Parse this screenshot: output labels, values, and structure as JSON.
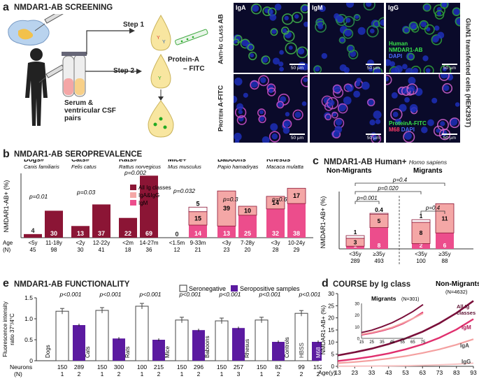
{
  "panel_a": {
    "letter": "a",
    "title": "NMDAR1-AB SCREENING",
    "step1": "Step 1",
    "step2": "Step 2",
    "protein_a": "Protein-A",
    "fitc": "– FITC",
    "sample": "Serum & ventricular CSF pairs",
    "row1": "Anti-Ig class AB",
    "row2": "Protein A-FITC",
    "side": "GluN1 transfected cells (HEK293T)",
    "cols": [
      "IgA",
      "IgM",
      "IgG"
    ],
    "legend_top": [
      "Human",
      "NMDAR1-AB",
      "DAPI"
    ],
    "legend_bottom": [
      "ProteinA-FITC",
      "M68",
      "DAPI"
    ],
    "scale": "50 µm"
  },
  "panel_b": {
    "letter": "b",
    "title": "NMDAR1-AB SEROPREVALENCE",
    "ylabel": "NMDAR1-AB+ (%)",
    "age_label": "Age",
    "n_label": "(N)",
    "legend": [
      "All Ig classes",
      "IgA&IgG",
      "IgM"
    ],
    "species": [
      {
        "name": "Dogs#",
        "latin": "Canis familiaris",
        "p": "p=0.01"
      },
      {
        "name": "Cats#",
        "latin": "Felis catus",
        "p": "p=0.03"
      },
      {
        "name": "Rats#",
        "latin": "Rattus norvegicus",
        "p": "p=0.002"
      },
      {
        "name": "Mice+",
        "latin": "Mus musculus",
        "p": "p=0.032"
      },
      {
        "name": "Baboons*",
        "latin": "Papio hamadryas",
        "p": "p=0.3"
      },
      {
        "name": "Rhesus*",
        "latin": "Macaca mulatta",
        "p": "p=0.6"
      }
    ]
  },
  "panel_c": {
    "letter": "c",
    "title": "NMDAR1-AB Human+",
    "latin": "Homo sapiens",
    "group1": "Non-Migrants",
    "group2": "Migrants",
    "ylabel": "NMDAR1-AB+ (%)",
    "pvals": [
      "p=0.4",
      "p=0.020",
      "p=0.001",
      "0.4",
      "p=0.4"
    ]
  },
  "panel_d": {
    "letter": "d",
    "title": "COURSE by Ig class",
    "group": "Non-Migrants",
    "n": "(N=4632)",
    "inset_title": "Migrants",
    "inset_n": "(N=301)",
    "ylabel": "NMDAR1-AB+ (%)",
    "xlabel": "Age(y)",
    "series_labels": [
      "All Ig classes",
      "IgM",
      "IgA",
      "IgG"
    ]
  },
  "panel_e": {
    "letter": "e",
    "title": "NMDAR1-AB FUNCTIONALITY",
    "legend": [
      "Seronegative",
      "Seropositive samples"
    ],
    "ylabel": "Fluorescence intensity ratio 37°/4°C",
    "row_neurons": "Neurons",
    "row_n": "(N)"
  },
  "chart_data": [
    {
      "type": "bar",
      "title": "NMDAR1-AB SEROPREVALENCE",
      "ylabel": "NMDAR1-AB+ (%)",
      "ylim": [
        0,
        70
      ],
      "categories": [
        "<5y",
        "11-18y",
        "<2y",
        "12-22y",
        "<2m",
        "14-27m",
        "<1.5m",
        "9-33m",
        "<3y",
        "7-28y",
        "<3y",
        "10-24y"
      ],
      "n": [
        "45",
        "98",
        "30",
        "41",
        "18",
        "36",
        "12",
        "21",
        "23",
        "20",
        "28",
        "29"
      ],
      "series": [
        {
          "name": "All Ig classes",
          "values": [
            4,
            30,
            13,
            37,
            22,
            69,
            0,
            null,
            null,
            null,
            null,
            null
          ],
          "labels": [
            "4",
            "30",
            "13",
            "37",
            "22",
            "69",
            "0",
            "",
            "",
            "",
            "",
            ""
          ]
        },
        {
          "name": "IgM",
          "values": [
            null,
            null,
            null,
            null,
            null,
            null,
            null,
            14,
            13,
            25,
            32,
            38
          ],
          "labels": [
            "",
            "",
            "",
            "",
            "",
            "",
            "",
            "14",
            "13",
            "25",
            "32",
            "38"
          ]
        },
        {
          "name": "IgA&IgG",
          "values": [
            null,
            null,
            null,
            null,
            null,
            null,
            null,
            15,
            39,
            10,
            14,
            17
          ],
          "labels": [
            "",
            "",
            "",
            "",
            "",
            "",
            "",
            "15",
            "39",
            "10",
            "14",
            "17"
          ]
        },
        {
          "name": "top",
          "values": [
            null,
            null,
            null,
            null,
            null,
            null,
            null,
            5,
            null,
            null,
            null,
            null
          ],
          "labels": [
            "",
            "",
            "",
            "",
            "",
            "",
            "",
            "5",
            "",
            "",
            "",
            ""
          ]
        }
      ]
    },
    {
      "type": "bar",
      "title": "NMDAR1-AB Human+",
      "ylabel": "NMDAR1-AB+ (%)",
      "ylim": [
        0,
        20
      ],
      "categories": [
        "<35y",
        "≥35y",
        "<35y",
        "≥35y"
      ],
      "n": [
        "289",
        "493",
        "100",
        "88"
      ],
      "series": [
        {
          "name": "IgM",
          "values": [
            1,
            8,
            2,
            6
          ],
          "labels": [
            "1",
            "8",
            "2",
            "6"
          ]
        },
        {
          "name": "IgA&IgG",
          "values": [
            3,
            5,
            8,
            11
          ],
          "labels": [
            "3",
            "5",
            "8",
            "11"
          ]
        },
        {
          "name": "top",
          "values": [
            1,
            0.4,
            1,
            0
          ],
          "labels": [
            "1",
            "0.4",
            "1",
            ""
          ]
        }
      ]
    },
    {
      "type": "line",
      "title": "COURSE by Ig class",
      "xlabel": "Age(y)",
      "ylabel": "NMDAR1-AB+ (%)",
      "x": [
        13,
        23,
        33,
        43,
        53,
        63,
        73,
        83,
        93
      ],
      "ylim": [
        0,
        30
      ],
      "yticks": [
        0,
        5,
        10,
        15,
        20,
        25,
        30
      ],
      "series": [
        {
          "name": "All Ig classes",
          "values": [
            4.5,
            5.8,
            7.3,
            9.2,
            11.5,
            14.3,
            17.8,
            22,
            27
          ]
        },
        {
          "name": "IgM",
          "values": [
            2.2,
            3,
            4,
            5.3,
            7,
            9.1,
            11.8,
            15.2,
            19.5
          ]
        },
        {
          "name": "IgA",
          "values": [
            1.3,
            1.8,
            2.4,
            3.2,
            4.2,
            5.5,
            7,
            8.9,
            11.2
          ]
        },
        {
          "name": "IgG",
          "values": [
            0.05,
            0.08,
            0.12,
            0.18,
            0.27,
            0.4,
            0.6,
            0.9,
            1.3
          ]
        }
      ],
      "inset": {
        "title": "Migrants (N=301)",
        "x": [
          15,
          25,
          35,
          45,
          55,
          65,
          75
        ],
        "ylim": [
          0,
          30
        ],
        "yticks": [
          0,
          10,
          20,
          30
        ],
        "series": [
          {
            "name": "All Ig classes",
            "values": [
              5,
              7,
              10,
              13.5,
              18,
              23,
              29
            ]
          },
          {
            "name": "IgM",
            "values": [
              3,
              4.5,
              6.5,
              9,
              12.5,
              17,
              22.5
            ]
          },
          {
            "name": "IgA",
            "values": [
              3.5,
              5,
              7,
              9.5,
              13,
              17,
              21.5
            ]
          }
        ]
      }
    },
    {
      "type": "bar",
      "title": "NMDAR1-AB FUNCTIONALITY",
      "ylabel": "Fluorescence intensity ratio 37°/4°C",
      "ylim": [
        0,
        1.5
      ],
      "yticks": [
        0,
        0.5,
        1.0,
        1.5
      ],
      "categories": [
        "Dogs",
        "Cats",
        "Rats",
        "Mice",
        "Baboons",
        "Rhesus",
        "Controls"
      ],
      "series": [
        {
          "name": "Seronegative",
          "values": [
            1.18,
            1.2,
            1.3,
            0.97,
            0.95,
            0.97,
            1.13
          ]
        },
        {
          "name": "Seropositive samples",
          "values": [
            0.85,
            0.53,
            0.5,
            0.73,
            0.78,
            0.45,
            0.45
          ]
        }
      ],
      "pvalues": [
        "p<0.001",
        "p<0.001",
        "p<0.001",
        "p<0.001",
        "p<0.001",
        "p<0.001",
        "p<0.001"
      ],
      "control_labels": [
        "HBSS",
        "M68"
      ],
      "neurons": [
        "150",
        "289",
        "150",
        "300",
        "100",
        "215",
        "150",
        "296",
        "150",
        "257",
        "150",
        "82",
        "99",
        "152"
      ],
      "n": [
        "1",
        "2",
        "1",
        "2",
        "1",
        "2",
        "1",
        "2",
        "1",
        "3",
        "1",
        "2",
        "2",
        "2"
      ]
    }
  ]
}
